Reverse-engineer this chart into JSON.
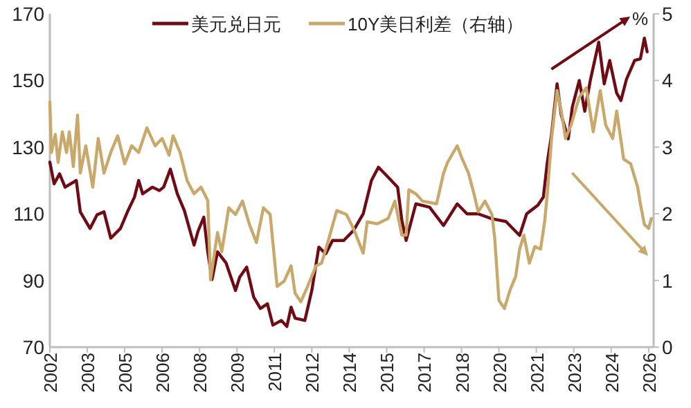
{
  "chart_data": {
    "type": "line",
    "y2label": "%",
    "legend": "top",
    "grid": false,
    "line_style": "solid",
    "xlim": [
      2002,
      2026.2
    ],
    "xticks": [
      {
        "value": 2002,
        "label": "2002"
      },
      {
        "value": 2003.5,
        "label": "2003"
      },
      {
        "value": 2005,
        "label": "2005"
      },
      {
        "value": 2006.5,
        "label": "2006"
      },
      {
        "value": 2008,
        "label": "2008"
      },
      {
        "value": 2009.5,
        "label": "2009"
      },
      {
        "value": 2011,
        "label": "2011"
      },
      {
        "value": 2012.5,
        "label": "2012"
      },
      {
        "value": 2014,
        "label": "2014"
      },
      {
        "value": 2015.5,
        "label": "2015"
      },
      {
        "value": 2017,
        "label": "2017"
      },
      {
        "value": 2018.5,
        "label": "2018"
      },
      {
        "value": 2020,
        "label": "2020"
      },
      {
        "value": 2021.5,
        "label": "2021"
      },
      {
        "value": 2023,
        "label": "2023"
      },
      {
        "value": 2024.5,
        "label": "2024"
      },
      {
        "value": 2026,
        "label": "2026"
      }
    ],
    "ylim": [
      70,
      170
    ],
    "yticks": [
      70,
      90,
      110,
      130,
      150,
      170
    ],
    "y2lim": [
      0,
      5
    ],
    "y2ticks": [
      0,
      1,
      2,
      3,
      4,
      5
    ],
    "series": [
      {
        "name": "美元兑日元",
        "color": "#6e0b14",
        "x": [
          2002.0,
          2002.17,
          2002.39,
          2002.61,
          2003.06,
          2003.22,
          2003.61,
          2003.89,
          2004.17,
          2004.44,
          2004.83,
          2005.11,
          2005.39,
          2005.56,
          2005.72,
          2006.11,
          2006.39,
          2006.56,
          2006.83,
          2007.11,
          2007.39,
          2007.78,
          2007.94,
          2008.17,
          2008.33,
          2008.5,
          2008.72,
          2009.06,
          2009.44,
          2009.61,
          2009.89,
          2010.17,
          2010.44,
          2010.72,
          2010.94,
          2011.28,
          2011.5,
          2011.67,
          2011.83,
          2012.22,
          2012.5,
          2012.78,
          2013.06,
          2013.33,
          2013.78,
          2014.17,
          2014.56,
          2014.89,
          2015.17,
          2015.56,
          2015.94,
          2016.11,
          2016.28,
          2016.67,
          2017.22,
          2017.78,
          2018.33,
          2018.72,
          2019.17,
          2019.72,
          2020.28,
          2020.83,
          2021.11,
          2021.56,
          2021.78,
          2021.94,
          2022.11,
          2022.33,
          2022.5,
          2022.78,
          2022.94,
          2023.22,
          2023.44,
          2023.67,
          2024.0,
          2024.22,
          2024.44,
          2024.72,
          2024.89,
          2025.11,
          2025.44,
          2025.67,
          2025.83,
          2025.94
        ],
        "values": [
          125.5,
          119,
          122,
          118,
          120,
          110.6,
          105.6,
          109.7,
          110.6,
          102.7,
          105.6,
          110.6,
          115,
          120,
          116,
          118,
          117,
          118,
          123.4,
          116,
          111,
          100.6,
          104.8,
          109,
          98.6,
          90.3,
          98.6,
          95.3,
          87,
          91,
          94,
          85,
          81.6,
          83,
          76.6,
          78,
          76.2,
          82,
          78.7,
          78,
          87,
          100,
          98,
          102,
          102,
          105,
          110,
          120,
          124,
          121,
          118,
          108,
          102,
          113,
          112,
          106.5,
          113,
          110,
          110,
          108.5,
          107.7,
          103.5,
          110,
          112.6,
          115,
          125.5,
          133.8,
          149,
          139.6,
          132.5,
          142,
          150,
          140.8,
          150.3,
          161.5,
          149,
          156,
          146.2,
          144,
          150.3,
          156,
          156.5,
          162.7,
          158.6
        ]
      },
      {
        "name": "10Y美日利差（右轴）",
        "color": "#c9a86b",
        "axis": "y2",
        "x": [
          2002.0,
          2002.06,
          2002.22,
          2002.33,
          2002.5,
          2002.67,
          2002.78,
          2002.94,
          2003.11,
          2003.22,
          2003.44,
          2003.72,
          2003.94,
          2004.17,
          2004.44,
          2004.72,
          2005.0,
          2005.28,
          2005.56,
          2005.89,
          2006.22,
          2006.5,
          2006.78,
          2006.94,
          2007.22,
          2007.5,
          2007.78,
          2008.06,
          2008.33,
          2008.44,
          2008.72,
          2008.89,
          2009.17,
          2009.44,
          2009.72,
          2010.0,
          2010.28,
          2010.56,
          2010.83,
          2011.11,
          2011.39,
          2011.67,
          2011.83,
          2012.06,
          2012.33,
          2012.67,
          2012.89,
          2013.17,
          2013.5,
          2013.89,
          2014.17,
          2014.56,
          2014.72,
          2015.11,
          2015.56,
          2015.83,
          2016.11,
          2016.28,
          2016.39,
          2016.67,
          2016.94,
          2017.5,
          2017.78,
          2017.94,
          2018.17,
          2018.33,
          2018.5,
          2018.78,
          2019.0,
          2019.17,
          2019.44,
          2019.72,
          2019.83,
          2020.0,
          2020.22,
          2020.44,
          2020.67,
          2020.83,
          2021.0,
          2021.22,
          2021.44,
          2021.67,
          2021.83,
          2021.94,
          2022.11,
          2022.33,
          2022.5,
          2022.67,
          2022.89,
          2023.22,
          2023.5,
          2023.78,
          2024.06,
          2024.28,
          2024.56,
          2024.72,
          2025.0,
          2025.28,
          2025.56,
          2025.67,
          2025.83,
          2026.0,
          2026.11
        ],
        "values": [
          3.68,
          2.92,
          3.19,
          2.77,
          3.23,
          2.92,
          3.23,
          2.71,
          3.48,
          2.61,
          3.02,
          2.4,
          3.13,
          2.61,
          2.92,
          3.17,
          2.75,
          3.02,
          2.92,
          3.29,
          3.02,
          3.13,
          2.88,
          3.17,
          2.92,
          2.5,
          2.3,
          2.4,
          2.2,
          1.01,
          1.72,
          1.43,
          2.09,
          1.99,
          2.19,
          1.84,
          1.57,
          2.09,
          1.99,
          0.91,
          0.99,
          1.22,
          0.81,
          0.68,
          0.91,
          1.22,
          1.26,
          1.61,
          2.05,
          1.99,
          1.78,
          1.41,
          1.88,
          1.85,
          1.93,
          2.19,
          1.68,
          1.68,
          2.36,
          2.3,
          2.19,
          2.15,
          2.61,
          2.77,
          2.92,
          3.02,
          2.85,
          2.61,
          2.3,
          2.03,
          2.19,
          1.99,
          1.64,
          0.7,
          0.58,
          0.85,
          1.06,
          1.47,
          1.68,
          1.26,
          1.51,
          1.47,
          1.88,
          2.3,
          3.13,
          3.85,
          3.54,
          3.13,
          3.33,
          3.75,
          3.89,
          3.23,
          3.85,
          3.33,
          3.13,
          3.54,
          2.82,
          2.75,
          2.4,
          2.15,
          1.84,
          1.78,
          1.93
        ]
      }
    ]
  }
}
